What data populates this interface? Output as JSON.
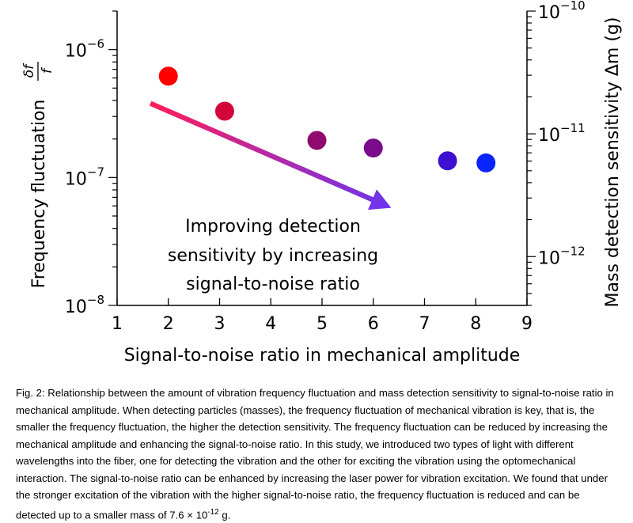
{
  "chart_data": {
    "type": "scatter",
    "xlabel": "Signal-to-noise ratio in mechanical amplitude",
    "ylabel_left": "Frequency fluctuation",
    "ylabel_left_num": "δf",
    "ylabel_left_den": "f",
    "ylabel_right": "Mass detection sensitivity Δm (g)",
    "xlim": [
      1,
      9
    ],
    "x_ticks": [
      "1",
      "2",
      "3",
      "4",
      "5",
      "6",
      "7",
      "8",
      "9"
    ],
    "ylim_left": [
      1e-08,
      2e-06
    ],
    "y_scale": "log",
    "ylim_right": [
      4e-13,
      1e-10
    ],
    "y_ticks_left": [
      {
        "base": "10",
        "exp": "−6",
        "value": 1e-06
      },
      {
        "base": "10",
        "exp": "−7",
        "value": 1e-07
      },
      {
        "base": "10",
        "exp": "−8",
        "value": 1e-08
      }
    ],
    "y_ticks_right": [
      {
        "base": "10",
        "exp": "−10",
        "value": 1e-10
      },
      {
        "base": "10",
        "exp": "−11",
        "value": 1e-11
      },
      {
        "base": "10",
        "exp": "−12",
        "value": 1e-12
      }
    ],
    "points": [
      {
        "x": 2.0,
        "y": 6.2e-07,
        "color": "#ff0000"
      },
      {
        "x": 3.1,
        "y": 3.3e-07,
        "color": "#d3063a"
      },
      {
        "x": 4.9,
        "y": 1.95e-07,
        "color": "#8e0a6e"
      },
      {
        "x": 6.0,
        "y": 1.7e-07,
        "color": "#7a0b8c"
      },
      {
        "x": 7.45,
        "y": 1.35e-07,
        "color": "#3d10cf"
      },
      {
        "x": 8.2,
        "y": 1.3e-07,
        "color": "#0a24ff"
      }
    ],
    "arrow": {
      "from": {
        "x": 1.65,
        "y": 3.8e-07
      },
      "to": {
        "x": 6.35,
        "y": 5.8e-08
      },
      "color_start": "#ff1e5a",
      "color_end": "#6a35f0"
    },
    "annotation_lines": [
      "Improving detection",
      "sensitivity by increasing",
      "signal-to-noise ratio"
    ]
  },
  "caption": {
    "text": "Fig. 2: Relationship between the amount of vibration frequency fluctuation and mass detection sensitivity to signal-to-noise ratio in mechanical amplitude. When detecting particles (masses), the frequency fluctuation of mechanical vibration is key, that is, the smaller the frequency fluctuation, the higher the detection sensitivity. The frequency fluctuation can be reduced by increasing the mechanical amplitude and enhancing the signal-to-noise ratio. In this study, we introduced two types of light with different wavelengths into the fiber, one for detecting the vibration and the other for exciting the vibration using the optomechanical interaction. The signal-to-noise ratio can be enhanced by increasing the laser power for vibration excitation. We found that under the stronger excitation of the vibration with the higher signal-to-noise ratio, the frequency fluctuation is reduced and can be detected up to a smaller mass of 7.6 × 10",
    "exp": "-12",
    "tail": " g."
  }
}
